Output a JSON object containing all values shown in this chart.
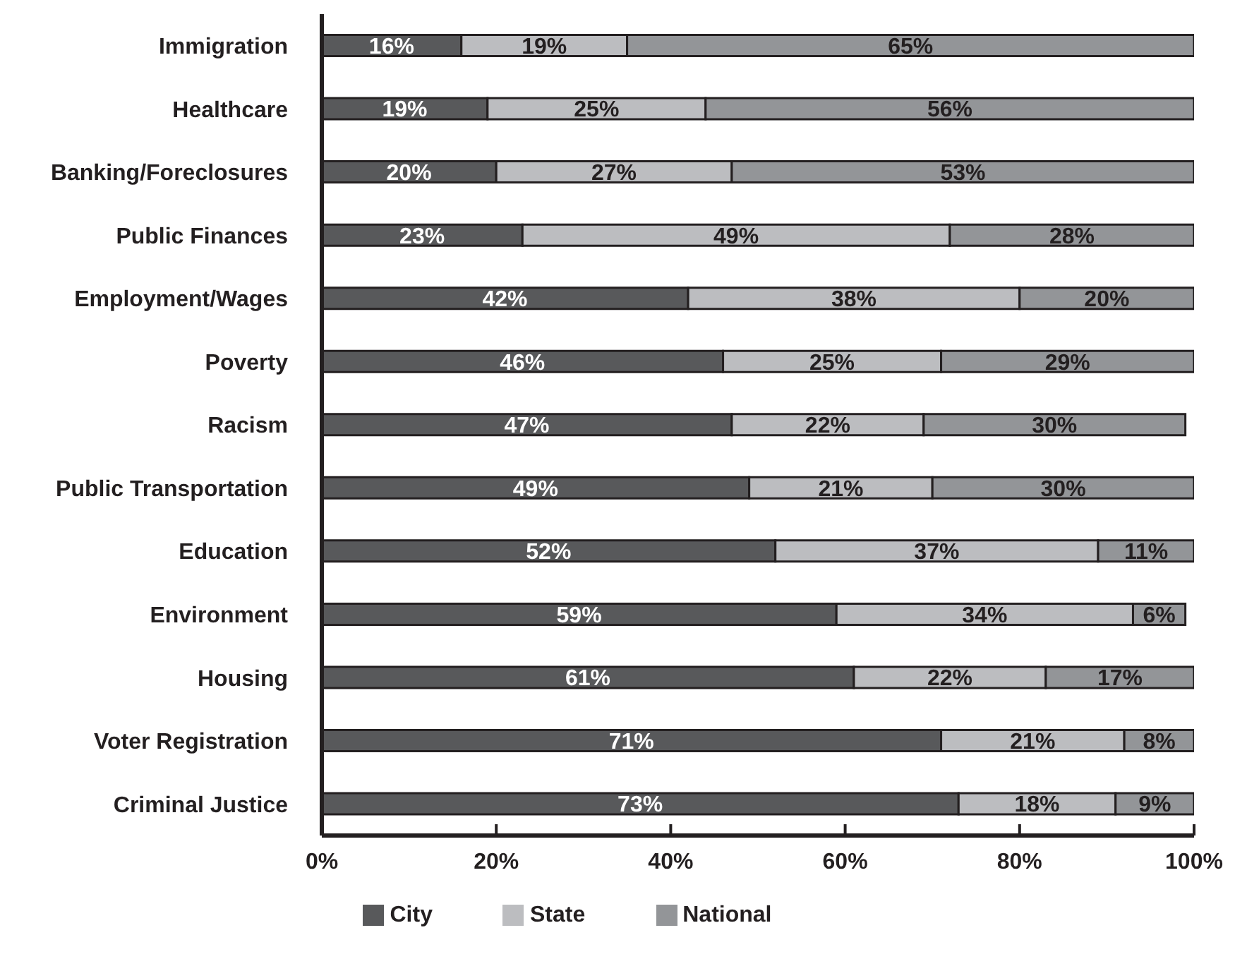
{
  "chart_data": {
    "type": "bar",
    "orientation": "horizontal",
    "stacked": true,
    "categories": [
      "Immigration",
      "Healthcare",
      "Banking/Foreclosures",
      "Public Finances",
      "Employment/Wages",
      "Poverty",
      "Racism",
      "Public Transportation",
      "Education",
      "Environment",
      "Housing",
      "Voter Registration",
      "Criminal Justice"
    ],
    "series": [
      {
        "name": "City",
        "color": "#58595b",
        "values": [
          16,
          19,
          20,
          23,
          42,
          46,
          47,
          49,
          52,
          59,
          61,
          71,
          73
        ],
        "value_labels": [
          "16%",
          "19%",
          "20%",
          "23%",
          "42%",
          "46%",
          "47%",
          "49%",
          "52%",
          "59%",
          "61%",
          "71%",
          "73%"
        ]
      },
      {
        "name": "State",
        "color": "#bcbdc0",
        "values": [
          19,
          25,
          27,
          49,
          38,
          25,
          22,
          21,
          37,
          34,
          22,
          21,
          18
        ],
        "value_labels": [
          "19%",
          "25%",
          "27%",
          "49%",
          "38%",
          "25%",
          "22%",
          "21%",
          "37%",
          "34%",
          "22%",
          "21%",
          "18%"
        ]
      },
      {
        "name": "National",
        "color": "#939598",
        "values": [
          65,
          56,
          53,
          28,
          20,
          29,
          30,
          30,
          11,
          6,
          17,
          8,
          9
        ],
        "value_labels": [
          "65%",
          "56%",
          "53%",
          "28%",
          "20%",
          "29%",
          "30%",
          "30%",
          "11%",
          "6%",
          "17%",
          "8%",
          "9%"
        ]
      }
    ],
    "xlim": [
      0,
      100
    ],
    "xticks": [
      {
        "value": 0,
        "label": "0%"
      },
      {
        "value": 20,
        "label": "20%"
      },
      {
        "value": 40,
        "label": "40%"
      },
      {
        "value": 60,
        "label": "60%"
      },
      {
        "value": 80,
        "label": "80%"
      },
      {
        "value": 100,
        "label": "100%"
      }
    ],
    "legend": "bottom"
  }
}
